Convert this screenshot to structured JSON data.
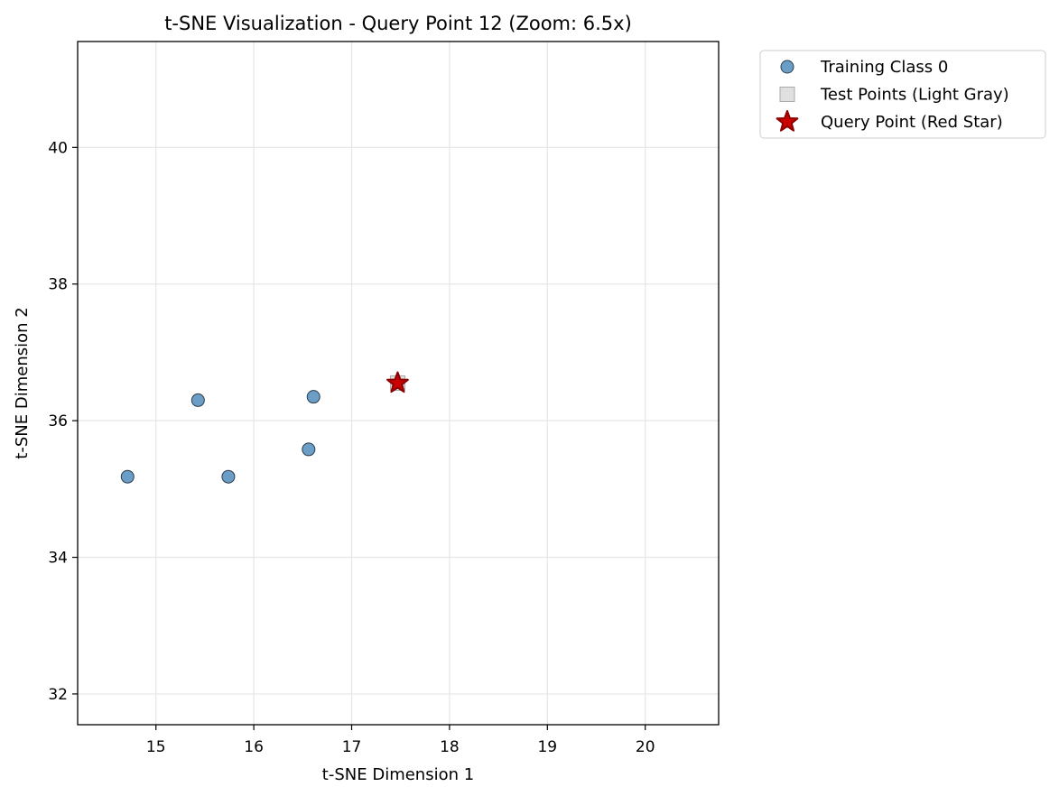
{
  "chart_data": {
    "type": "scatter",
    "title": "t-SNE Visualization - Query Point 12 (Zoom: 6.5x)",
    "xlabel": "t-SNE Dimension 1",
    "ylabel": "t-SNE Dimension 2",
    "xlim": [
      14.2,
      20.75
    ],
    "ylim": [
      31.55,
      41.55
    ],
    "xticks": [
      15,
      16,
      17,
      18,
      19,
      20
    ],
    "yticks": [
      32,
      34,
      36,
      38,
      40
    ],
    "grid": true,
    "legend_position": "outside-top-right",
    "series": [
      {
        "name": "Training Class 0",
        "marker": "circle",
        "color": "#6a9ec7",
        "edge_color": "#2b3c4c",
        "points": [
          {
            "x": 14.71,
            "y": 35.18
          },
          {
            "x": 15.43,
            "y": 36.3
          },
          {
            "x": 15.74,
            "y": 35.18
          },
          {
            "x": 16.56,
            "y": 35.58
          },
          {
            "x": 16.61,
            "y": 36.35
          }
        ]
      },
      {
        "name": "Test Points (Light Gray)",
        "marker": "square",
        "color": "#e0e0e0",
        "edge_color": "#aaaaaa",
        "points": [
          {
            "x": 17.47,
            "y": 36.55
          }
        ]
      },
      {
        "name": "Query Point (Red Star)",
        "marker": "star",
        "color": "#cc0000",
        "edge_color": "#8b0000",
        "points": [
          {
            "x": 17.47,
            "y": 36.55
          }
        ]
      }
    ]
  }
}
